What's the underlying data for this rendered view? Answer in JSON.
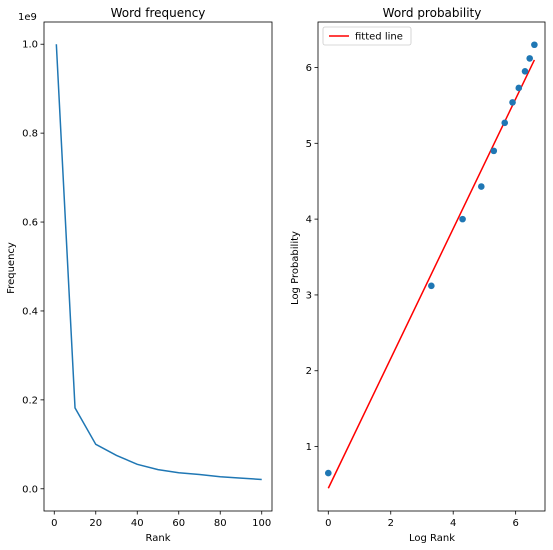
{
  "chart_data": [
    {
      "type": "line",
      "title": "Word frequency",
      "xlabel": "Rank",
      "ylabel": "Frequency",
      "y_offset_label": "1e9",
      "xlim": [
        -4.95,
        104.95
      ],
      "ylim": [
        -0.05,
        1.05
      ],
      "x_ticks": [
        0,
        20,
        40,
        60,
        80,
        100
      ],
      "y_ticks": [
        0.0,
        0.2,
        0.4,
        0.6,
        0.8,
        1.0
      ],
      "x_tick_labels": [
        "0",
        "20",
        "40",
        "60",
        "80",
        "100"
      ],
      "y_tick_labels": [
        "0.0",
        "0.2",
        "0.4",
        "0.6",
        "0.8",
        "1.0"
      ],
      "grid": false,
      "series": [
        {
          "color": "#1f77b4",
          "x": [
            1,
            10,
            20,
            30,
            40,
            50,
            60,
            70,
            80,
            90,
            100
          ],
          "y": [
            1.0,
            0.182,
            0.1,
            0.075,
            0.055,
            0.043,
            0.036,
            0.032,
            0.027,
            0.024,
            0.021
          ]
        }
      ]
    },
    {
      "type": "scatter",
      "title": "Word probability",
      "xlabel": "Log Rank",
      "ylabel": "Log Probability",
      "xlim": [
        -0.33,
        6.94
      ],
      "ylim": [
        0.15,
        6.6
      ],
      "x_ticks": [
        0,
        2,
        4,
        6
      ],
      "y_ticks": [
        1,
        2,
        3,
        4,
        5,
        6
      ],
      "x_tick_labels": [
        "0",
        "2",
        "4",
        "6"
      ],
      "y_tick_labels": [
        "1",
        "2",
        "3",
        "4",
        "5",
        "6"
      ],
      "grid": false,
      "legend": {
        "placement": "top-left",
        "entries": [
          "fitted line"
        ]
      },
      "points": {
        "color": "#1f77b4",
        "x": [
          0.0,
          3.3,
          4.3,
          4.9,
          5.3,
          5.65,
          5.9,
          6.1,
          6.3,
          6.45,
          6.6
        ],
        "y": [
          0.65,
          3.12,
          4.0,
          4.43,
          4.9,
          5.27,
          5.54,
          5.73,
          5.95,
          6.12,
          6.3
        ]
      },
      "fitted_line": {
        "name": "fitted line",
        "color": "#ff0000",
        "x": [
          0.0,
          6.6
        ],
        "y": [
          0.45,
          6.1
        ]
      }
    }
  ]
}
